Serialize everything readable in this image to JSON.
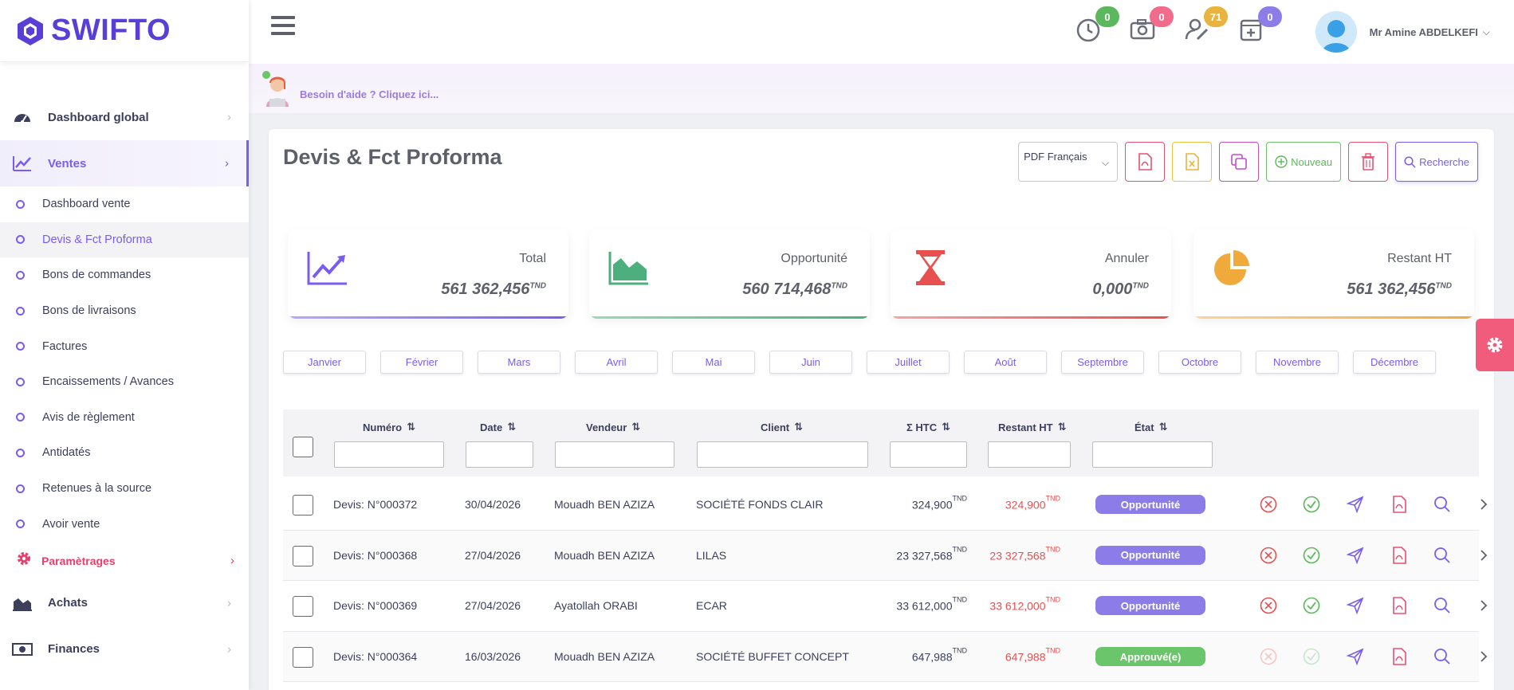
{
  "brand": {
    "name": "SWIFTO"
  },
  "sidebar": {
    "main_top": [
      {
        "label": "Dashboard global",
        "icon": "speedometer-icon"
      },
      {
        "label": "Ventes",
        "icon": "chart-line-icon"
      }
    ],
    "sub_items": [
      {
        "label": "Dashboard vente"
      },
      {
        "label": "Devis & Fct Proforma"
      },
      {
        "label": "Bons de commandes"
      },
      {
        "label": "Bons de livraisons"
      },
      {
        "label": "Factures"
      },
      {
        "label": "Encaissements / Avances"
      },
      {
        "label": "Avis de règlement"
      },
      {
        "label": "Antidatés"
      },
      {
        "label": "Retenues à la source"
      },
      {
        "label": "Avoir vente"
      }
    ],
    "settings_label": "Paramètrages",
    "main_bottom": [
      {
        "label": "Achats",
        "icon": "area-chart-icon"
      },
      {
        "label": "Finances",
        "icon": "banknote-icon"
      }
    ]
  },
  "topbar": {
    "notifications": [
      {
        "icon": "clock-icon",
        "count": "0",
        "color": "#5cb85c"
      },
      {
        "icon": "camera-icon",
        "count": "0",
        "color": "#f06c8a"
      },
      {
        "icon": "user-edit-icon",
        "count": "71",
        "color": "#e8b33f"
      },
      {
        "icon": "calendar-plus-icon",
        "count": "0",
        "color": "#8c7ce8"
      }
    ],
    "user_name": "Mr Amine ABDELKEFI"
  },
  "help": {
    "text": "Besoin d'aide ? Cliquez ici..."
  },
  "page": {
    "title": "Devis & Fct Proforma",
    "pdf_language": "PDF Français",
    "new_label": "Nouveau",
    "search_label": "Recherche"
  },
  "stats": [
    {
      "label": "Total",
      "value": "561 362,456",
      "unit": "TND",
      "color": "#7a5cf0"
    },
    {
      "label": "Opportunité",
      "value": "560 714,468",
      "unit": "TND",
      "color": "#4caf7d"
    },
    {
      "label": "Annuler",
      "value": "0,000",
      "unit": "TND",
      "color": "#e85050"
    },
    {
      "label": "Restant HT",
      "value": "561 362,456",
      "unit": "TND",
      "color": "#f0a93b"
    }
  ],
  "months": [
    "Janvier",
    "Février",
    "Mars",
    "Avril",
    "Mai",
    "Juin",
    "Juillet",
    "Août",
    "Septembre",
    "Octobre",
    "Novembre",
    "Décembre"
  ],
  "table": {
    "columns": [
      "Numéro",
      "Date",
      "Vendeur",
      "Client",
      "Σ HTC",
      "Restant HT",
      "État"
    ],
    "rows": [
      {
        "numero": "Devis: N°000372",
        "date": "30/04/2026",
        "vendeur": "Mouadh BEN AZIZA",
        "client": "SOCIÉTÉ FONDS CLAIR",
        "htc": "324,900",
        "restant": "324,900",
        "unit": "TND",
        "etat": "Opportunité",
        "etat_color": "#8c7ce8",
        "actions_enabled": true
      },
      {
        "numero": "Devis: N°000368",
        "date": "27/04/2026",
        "vendeur": "Mouadh BEN AZIZA",
        "client": "LILAS",
        "htc": "23 327,568",
        "restant": "23 327,568",
        "unit": "TND",
        "etat": "Opportunité",
        "etat_color": "#8c7ce8",
        "actions_enabled": true
      },
      {
        "numero": "Devis: N°000369",
        "date": "27/04/2026",
        "vendeur": "Ayatollah ORABI",
        "client": "ECAR",
        "htc": "33 612,000",
        "restant": "33 612,000",
        "unit": "TND",
        "etat": "Opportunité",
        "etat_color": "#8c7ce8",
        "actions_enabled": true
      },
      {
        "numero": "Devis: N°000364",
        "date": "16/03/2026",
        "vendeur": "Mouadh BEN AZIZA",
        "client": "SOCIÉTÉ BUFFET CONCEPT",
        "htc": "647,988",
        "restant": "647,988",
        "unit": "TND",
        "etat": "Approuvé(e)",
        "etat_color": "#6bc56b",
        "actions_enabled": false
      }
    ]
  }
}
